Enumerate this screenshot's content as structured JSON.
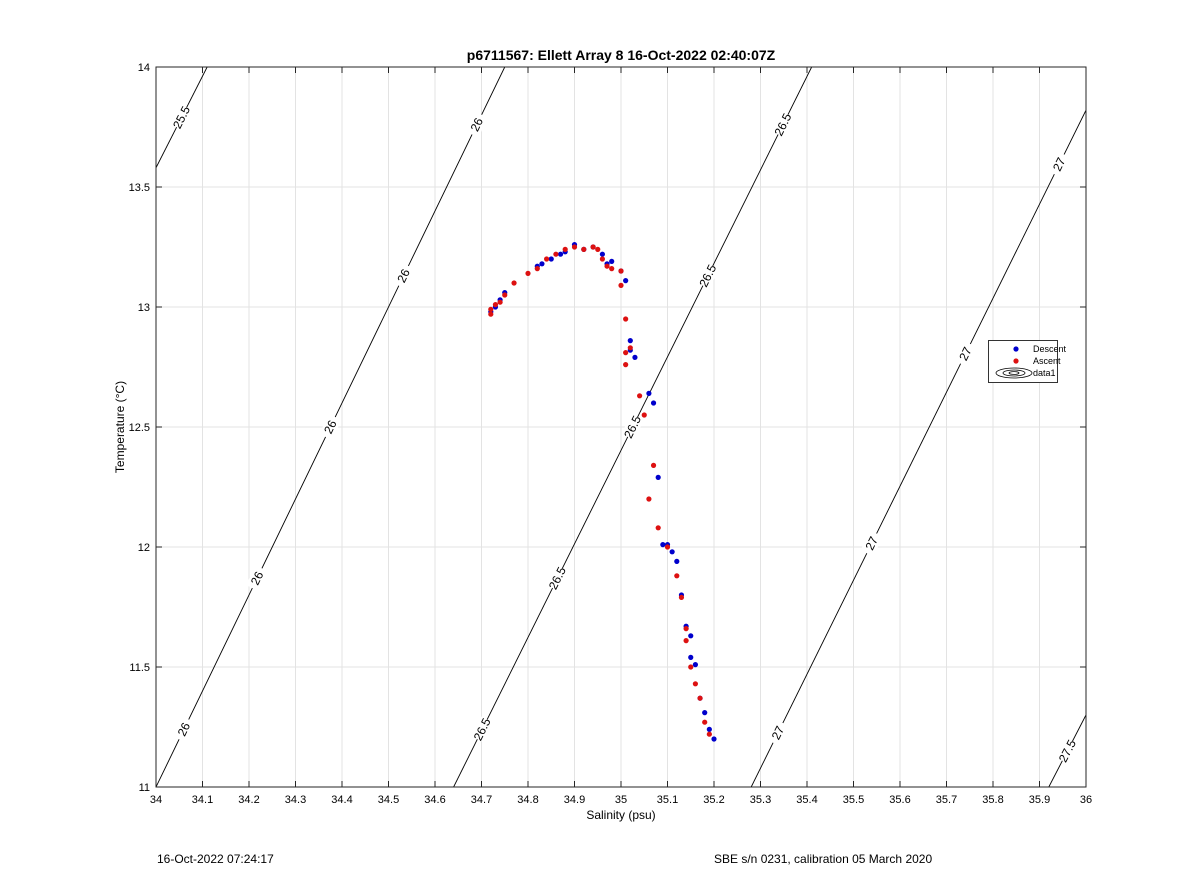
{
  "chart_data": {
    "type": "scatter",
    "title": "p6711567: Ellett Array 8 16-Oct-2022 02:40:07Z",
    "xlabel": "Salinity (psu)",
    "ylabel": "Temperature (°C)",
    "xlim": [
      34,
      36
    ],
    "ylim": [
      11,
      14
    ],
    "x_ticks": [
      "34",
      "34.1",
      "34.2",
      "34.3",
      "34.4",
      "34.5",
      "34.6",
      "34.7",
      "34.8",
      "34.9",
      "35",
      "35.1",
      "35.2",
      "35.3",
      "35.4",
      "35.5",
      "35.6",
      "35.7",
      "35.8",
      "35.9",
      "36"
    ],
    "y_ticks": [
      "11",
      "11.5",
      "12",
      "12.5",
      "13",
      "13.5",
      "14"
    ],
    "grid": true,
    "legend_position": "right",
    "legend": [
      "Descent",
      "Ascent",
      "data1"
    ],
    "series": [
      {
        "name": "Descent",
        "color": "#0000cc",
        "x": [
          34.72,
          34.73,
          34.74,
          34.75,
          34.82,
          34.83,
          34.85,
          34.87,
          34.88,
          34.9,
          34.92,
          34.94,
          34.96,
          34.97,
          34.98,
          35.0,
          35.01,
          35.02,
          35.02,
          35.03,
          35.06,
          35.07,
          35.08,
          35.09,
          35.1,
          35.11,
          35.12,
          35.13,
          35.14,
          35.15,
          35.15,
          35.16,
          35.17,
          35.18,
          35.19,
          35.2
        ],
        "y": [
          12.98,
          13.0,
          13.03,
          13.06,
          13.17,
          13.18,
          13.2,
          13.22,
          13.23,
          13.26,
          13.24,
          13.25,
          13.22,
          13.18,
          13.19,
          13.15,
          13.11,
          12.86,
          12.82,
          12.79,
          12.64,
          12.6,
          12.29,
          12.01,
          12.01,
          11.98,
          11.94,
          11.8,
          11.67,
          11.63,
          11.54,
          11.51,
          11.37,
          11.31,
          11.24,
          11.2
        ]
      },
      {
        "name": "Ascent",
        "color": "#dd1111",
        "x": [
          34.72,
          34.72,
          34.73,
          34.74,
          34.75,
          34.77,
          34.8,
          34.82,
          34.84,
          34.86,
          34.88,
          34.9,
          34.92,
          34.94,
          34.95,
          34.96,
          34.97,
          34.98,
          35.0,
          35.0,
          35.01,
          35.01,
          35.01,
          35.02,
          35.04,
          35.05,
          35.06,
          35.07,
          35.08,
          35.1,
          35.12,
          35.13,
          35.14,
          35.14,
          35.15,
          35.16,
          35.17,
          35.18,
          35.19
        ],
        "y": [
          12.97,
          12.99,
          13.01,
          13.02,
          13.05,
          13.1,
          13.14,
          13.16,
          13.2,
          13.22,
          13.24,
          13.25,
          13.24,
          13.25,
          13.24,
          13.2,
          13.17,
          13.16,
          13.15,
          13.09,
          12.95,
          12.81,
          12.76,
          12.83,
          12.63,
          12.55,
          12.2,
          12.34,
          12.08,
          12.0,
          11.88,
          11.79,
          11.66,
          11.61,
          11.5,
          11.43,
          11.37,
          11.27,
          11.22
        ]
      }
    ],
    "contours": {
      "name": "data1",
      "color": "#000000",
      "levels": [
        {
          "value": 25.5,
          "labels": [
            "25.5"
          ]
        },
        {
          "value": 26,
          "labels": [
            "26",
            "26",
            "26",
            "26",
            "26"
          ]
        },
        {
          "value": 26.5,
          "labels": [
            "26.5",
            "26.5",
            "26.5",
            "26.5",
            "26.5"
          ]
        },
        {
          "value": 27,
          "labels": [
            "27",
            "27",
            "27",
            "27"
          ]
        },
        {
          "value": 27.5,
          "labels": [
            "27.5"
          ]
        }
      ],
      "lines": [
        {
          "level": 25.5,
          "x": [
            34,
            34.11
          ],
          "y": [
            13.58,
            14
          ]
        },
        {
          "level": 26,
          "x": [
            34,
            34.75
          ],
          "y": [
            11.0,
            14
          ]
        },
        {
          "level": 26.5,
          "x": [
            34.64,
            35.41
          ],
          "y": [
            11.0,
            14
          ]
        },
        {
          "level": 27,
          "x": [
            35.28,
            36
          ],
          "y": [
            11.0,
            13.82
          ]
        },
        {
          "level": 27.5,
          "x": [
            35.92,
            36
          ],
          "y": [
            11.0,
            11.3
          ]
        }
      ]
    }
  },
  "footer": {
    "left": "16-Oct-2022 07:24:17",
    "right": "SBE s/n 0231, calibration 05 March 2020"
  }
}
